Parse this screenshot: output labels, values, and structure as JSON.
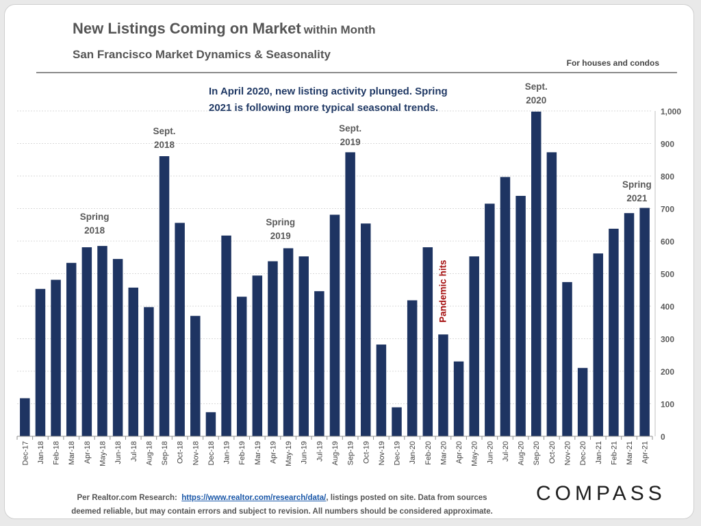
{
  "header": {
    "title": "New Listings Coming on Market",
    "title_suffix": "within Month",
    "subtitle": "San Francisco Market Dynamics & Seasonality",
    "note": "For houses and condos"
  },
  "footer": {
    "line1_prefix": "Per Realtor.com Research:",
    "link": "https://www.realtor.com/research/data/",
    "line1_suffix": ", listings posted on site. Data from sources",
    "line2": "deemed reliable, but may contain errors and subject to revision. All numbers should be considered approximate."
  },
  "brand": {
    "logo": "COMPASS"
  },
  "colors": {
    "bar": "#1e3462",
    "annotation_dark": "#1f3864",
    "label_gray": "#595959",
    "pandemic": "#a40d0d"
  },
  "chart_data": {
    "type": "bar",
    "categories": [
      "Dec-17",
      "Jan-18",
      "Feb-18",
      "Mar-18",
      "Apr-18",
      "May-18",
      "Jun-18",
      "Jul-18",
      "Aug-18",
      "Sep-18",
      "Oct-18",
      "Nov-18",
      "Dec-18",
      "Jan-19",
      "Feb-19",
      "Mar-19",
      "Apr-19",
      "May-19",
      "Jun-19",
      "Jul-19",
      "Aug-19",
      "Sep-19",
      "Oct-19",
      "Nov-19",
      "Dec-19",
      "Jan-20",
      "Feb-20",
      "Mar-20",
      "Apr-20",
      "May-20",
      "Jun-20",
      "Jul-20",
      "Aug-20",
      "Sep-20",
      "Oct-20",
      "Nov-20",
      "Dec-20",
      "Jan-21",
      "Feb-21",
      "Mar-21",
      "Apr-21"
    ],
    "values": [
      117,
      453,
      481,
      533,
      581,
      585,
      545,
      457,
      397,
      861,
      656,
      370,
      74,
      617,
      429,
      494,
      538,
      578,
      553,
      446,
      681,
      873,
      654,
      282,
      89,
      418,
      581,
      313,
      230,
      553,
      715,
      797,
      739,
      998,
      873,
      474,
      210,
      562,
      638,
      686,
      702
    ],
    "ylim": [
      0,
      1000
    ],
    "yticks": [
      0,
      100,
      200,
      300,
      400,
      500,
      600,
      700,
      800,
      900,
      1000
    ],
    "ytick_labels": [
      "0",
      "100",
      "200",
      "300",
      "400",
      "500",
      "600",
      "700",
      "800",
      "900",
      "1,000"
    ],
    "y_axis_side": "right",
    "grid": true,
    "annotations": {
      "headline_line1": "In April 2020, new listing activity plunged. Spring",
      "headline_line2": "2021 is following more typical seasonal trends.",
      "spring18": [
        "Spring",
        "2018"
      ],
      "sept18": [
        "Sept.",
        "2018"
      ],
      "spring19": [
        "Spring",
        "2019"
      ],
      "sept19": [
        "Sept.",
        "2019"
      ],
      "sept20": [
        "Sept.",
        "2020"
      ],
      "spring21": [
        "Spring",
        "2021"
      ],
      "pandemic": "Pandemic hits"
    }
  }
}
